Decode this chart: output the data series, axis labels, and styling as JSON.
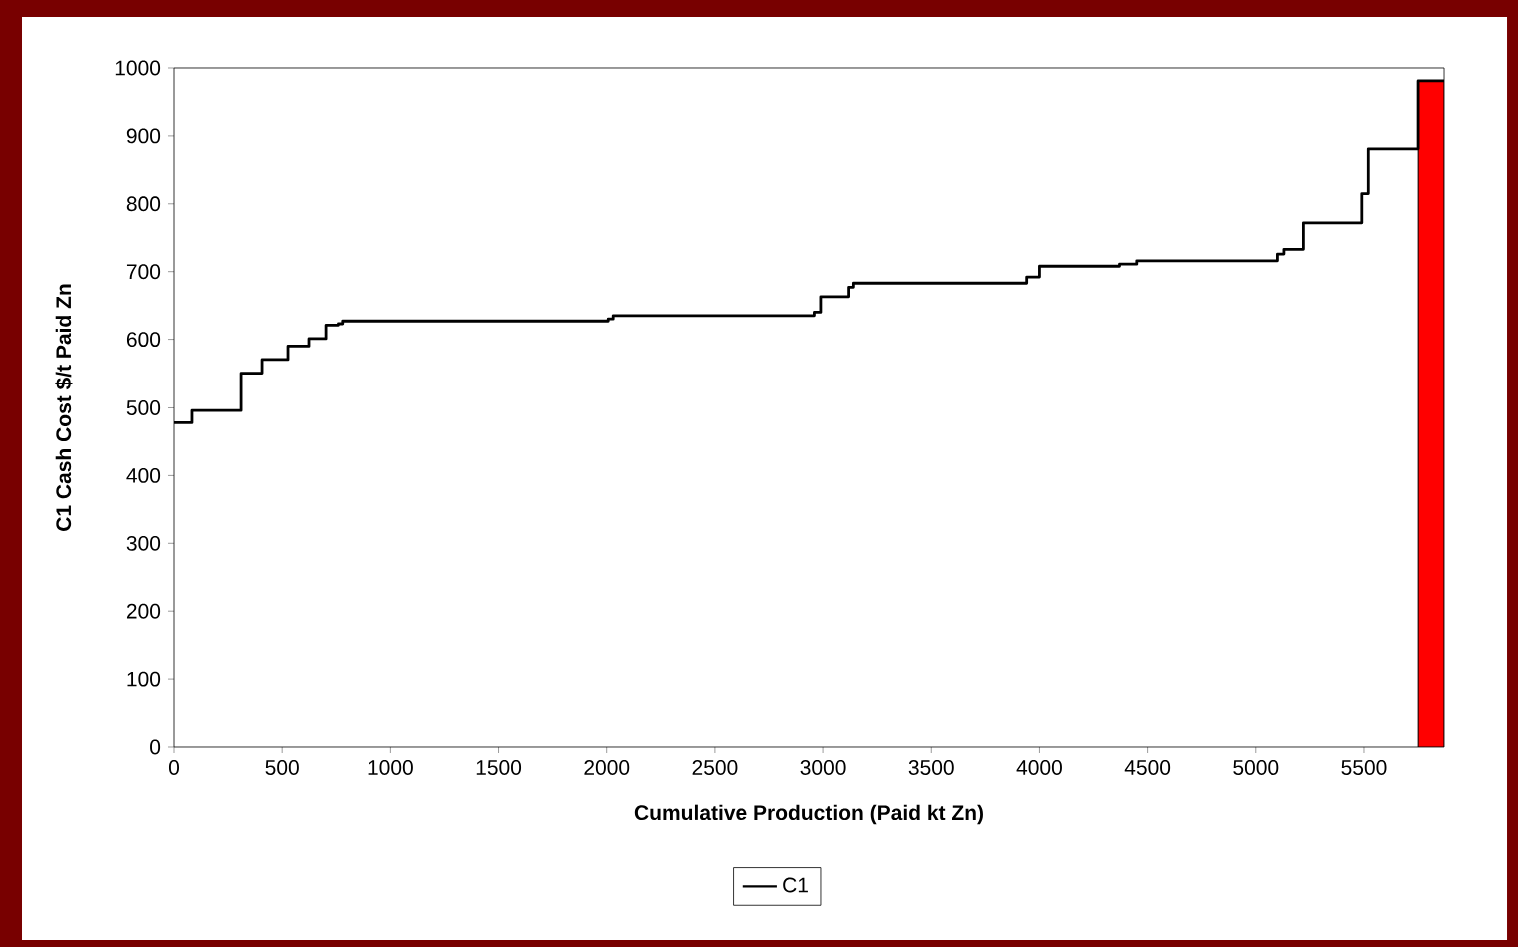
{
  "chart_data": {
    "type": "step",
    "xlabel": "Cumulative Production (Paid kt Zn)",
    "ylabel": "C1 Cash Cost $/t Paid Zn",
    "xlim": [
      0,
      5870
    ],
    "ylim": [
      0,
      1000
    ],
    "xticks": [
      0,
      500,
      1000,
      1500,
      2000,
      2500,
      3000,
      3500,
      4000,
      4500,
      5000,
      5500
    ],
    "yticks": [
      0,
      100,
      200,
      300,
      400,
      500,
      600,
      700,
      800,
      900,
      1000
    ],
    "legend": "bottom",
    "series": [
      {
        "name": "C1",
        "color": "#000000",
        "x": [
          0,
          83,
          310,
          407,
          527,
          624,
          703,
          760,
          780,
          2007,
          2030,
          2960,
          2990,
          3118,
          3140,
          3941,
          4000,
          4370,
          4450,
          5100,
          5130,
          5220,
          5490,
          5520,
          5750,
          5870
        ],
        "values": [
          478,
          496,
          550,
          570,
          590,
          601,
          621,
          623,
          627,
          630,
          635,
          640,
          663,
          677,
          683,
          692,
          708,
          711,
          716,
          726,
          733,
          772,
          815,
          881,
          981,
          981
        ]
      },
      {
        "type": "area",
        "color": "#ff0000",
        "x": [
          5750,
          5870
        ],
        "values": [
          981,
          981
        ]
      }
    ]
  }
}
